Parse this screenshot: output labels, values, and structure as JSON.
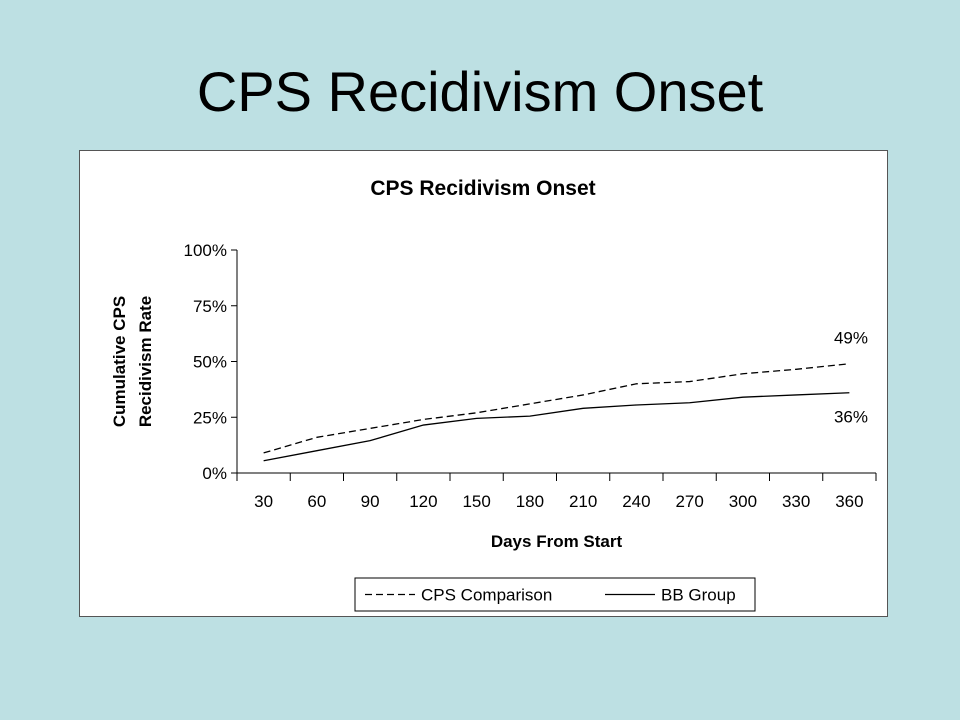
{
  "slide": {
    "title": "CPS Recidivism Onset"
  },
  "chart_data": {
    "type": "line",
    "title": "CPS Recidivism Onset",
    "xlabel": "Days From Start",
    "ylabel_lines": [
      "Cumulative CPS",
      "Recidivism Rate"
    ],
    "categories": [
      "30",
      "60",
      "90",
      "120",
      "150",
      "180",
      "210",
      "240",
      "270",
      "300",
      "330",
      "360"
    ],
    "ylim": [
      0,
      100
    ],
    "yticks": [
      0,
      25,
      50,
      75,
      100
    ],
    "ytick_labels": [
      "0%",
      "25%",
      "50%",
      "75%",
      "100%"
    ],
    "grid": false,
    "legend_position": "bottom",
    "series": [
      {
        "name": "CPS Comparison",
        "style": "dashed",
        "color": "#000000",
        "x": [
          30,
          60,
          90,
          120,
          150,
          180,
          210,
          240,
          270,
          300,
          330,
          360
        ],
        "values": [
          9,
          16,
          20,
          24,
          27,
          31,
          35,
          40,
          41,
          44.5,
          46.5,
          49
        ],
        "end_label": "49%"
      },
      {
        "name": "BB Group",
        "style": "solid",
        "color": "#000000",
        "x": [
          30,
          60,
          90,
          120,
          150,
          180,
          210,
          240,
          270,
          300,
          330,
          360
        ],
        "values": [
          5.5,
          10,
          14.5,
          21.5,
          24.5,
          25.5,
          29,
          30.5,
          31.5,
          34,
          35,
          36
        ],
        "end_label": "36%"
      }
    ]
  }
}
